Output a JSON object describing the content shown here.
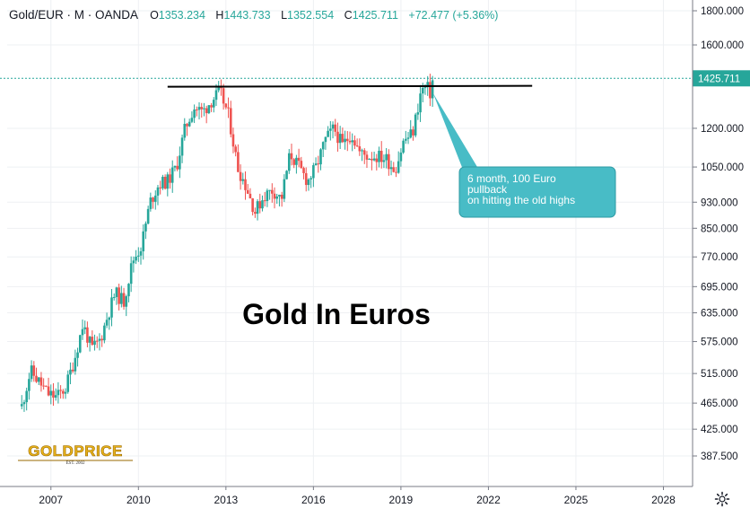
{
  "header": {
    "symbol": "Gold/EUR",
    "interval": "M",
    "source": "OANDA",
    "open_label": "O",
    "open": "1353.234",
    "high_label": "H",
    "high": "1443.733",
    "low_label": "L",
    "low": "1352.554",
    "close_label": "C",
    "close": "1425.711",
    "change": "+72.477 (+5.36%)"
  },
  "logo": {
    "text": "GOLDPRICE",
    "est": "EST. 2002"
  },
  "colors": {
    "up": "#26a69a",
    "down": "#ef5350",
    "accent": "#26a69a",
    "callout": "#48bcc6",
    "line": "#000000"
  },
  "icons": {
    "settings": "gear-icon"
  },
  "chart_data": {
    "type": "candlestick",
    "title": "Gold In Euros",
    "y_scale": "log",
    "ylim": [
      387.5,
      1800
    ],
    "xlim": [
      2005.5,
      2029
    ],
    "x_ticks": [
      "2007",
      "2010",
      "2013",
      "2016",
      "2019",
      "2022",
      "2025",
      "2028"
    ],
    "y_ticks": [
      "1800.000",
      "1600.000",
      "1200.000",
      "1050.000",
      "930.000",
      "850.000",
      "770.000",
      "695.000",
      "635.000",
      "575.000",
      "515.000",
      "465.000",
      "425.000",
      "387.500"
    ],
    "last_price": "1425.711",
    "horizontal_line": {
      "value": 1385,
      "x_start": 2011,
      "x_end": 2023.5
    },
    "annotation": {
      "lines": [
        "6 month, 100 Euro",
        "pullback",
        "on hitting the old highs"
      ],
      "points_to": [
        2020.1,
        1355
      ]
    },
    "price_series": [
      [
        2006.0,
        460
      ],
      [
        2006.3,
        520
      ],
      [
        2006.6,
        500
      ],
      [
        2006.9,
        480
      ],
      [
        2007.2,
        475
      ],
      [
        2007.5,
        490
      ],
      [
        2007.8,
        540
      ],
      [
        2008.1,
        610
      ],
      [
        2008.4,
        560
      ],
      [
        2008.7,
        580
      ],
      [
        2008.9,
        620
      ],
      [
        2009.2,
        680
      ],
      [
        2009.5,
        660
      ],
      [
        2009.8,
        760
      ],
      [
        2010.1,
        800
      ],
      [
        2010.4,
        930
      ],
      [
        2010.7,
        990
      ],
      [
        2011.0,
        1000
      ],
      [
        2011.3,
        1050
      ],
      [
        2011.6,
        1200
      ],
      [
        2011.9,
        1290
      ],
      [
        2012.2,
        1270
      ],
      [
        2012.5,
        1320
      ],
      [
        2012.8,
        1360
      ],
      [
        2013.1,
        1250
      ],
      [
        2013.4,
        1050
      ],
      [
        2013.7,
        980
      ],
      [
        2014.0,
        900
      ],
      [
        2014.3,
        950
      ],
      [
        2014.6,
        970
      ],
      [
        2014.9,
        940
      ],
      [
        2015.2,
        1100
      ],
      [
        2015.5,
        1050
      ],
      [
        2015.8,
        1000
      ],
      [
        2016.1,
        1050
      ],
      [
        2016.4,
        1150
      ],
      [
        2016.7,
        1200
      ],
      [
        2017.0,
        1130
      ],
      [
        2017.3,
        1180
      ],
      [
        2017.6,
        1100
      ],
      [
        2017.9,
        1090
      ],
      [
        2018.2,
        1090
      ],
      [
        2018.5,
        1080
      ],
      [
        2018.8,
        1040
      ],
      [
        2019.1,
        1150
      ],
      [
        2019.4,
        1180
      ],
      [
        2019.7,
        1370
      ],
      [
        2019.9,
        1380
      ],
      [
        2020.0,
        1355
      ],
      [
        2020.1,
        1425
      ]
    ]
  }
}
